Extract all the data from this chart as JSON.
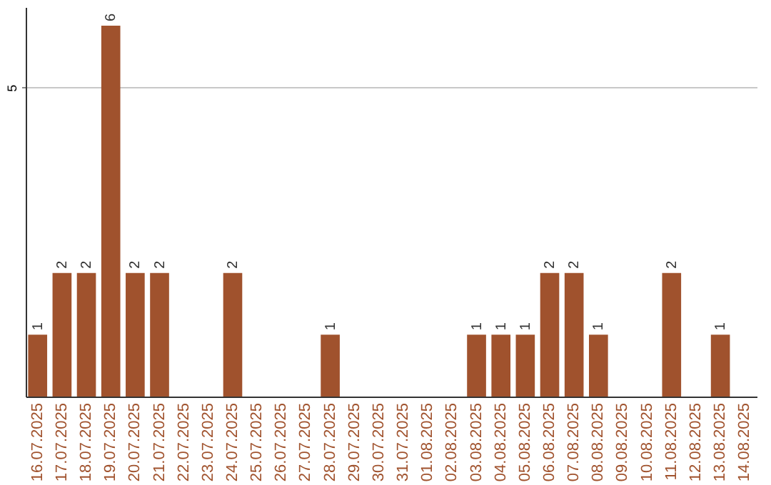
{
  "chart_data": {
    "type": "bar",
    "categories": [
      "16.07.2025",
      "17.07.2025",
      "18.07.2025",
      "19.07.2025",
      "20.07.2025",
      "21.07.2025",
      "22.07.2025",
      "23.07.2025",
      "24.07.2025",
      "25.07.2025",
      "26.07.2025",
      "27.07.2025",
      "28.07.2025",
      "29.07.2025",
      "30.07.2025",
      "31.07.2025",
      "01.08.2025",
      "02.08.2025",
      "03.08.2025",
      "04.08.2025",
      "05.08.2025",
      "06.08.2025",
      "07.08.2025",
      "08.08.2025",
      "09.08.2025",
      "10.08.2025",
      "11.08.2025",
      "12.08.2025",
      "13.08.2025",
      "14.08.2025"
    ],
    "values": [
      1,
      2,
      2,
      6,
      2,
      2,
      0,
      0,
      2,
      0,
      0,
      0,
      1,
      0,
      0,
      0,
      0,
      0,
      1,
      1,
      1,
      2,
      2,
      1,
      0,
      0,
      2,
      0,
      1,
      0
    ],
    "value_labels": [
      "1",
      "2",
      "2",
      "6",
      "2",
      "2",
      null,
      null,
      "2",
      null,
      null,
      null,
      "1",
      null,
      null,
      null,
      null,
      null,
      "1",
      "1",
      "1",
      "2",
      "2",
      "1",
      null,
      null,
      "2",
      null,
      "1",
      null
    ],
    "color": "#a0522d",
    "ylim": [
      0,
      6.3
    ],
    "yticks": [
      5
    ],
    "grid": "y"
  }
}
